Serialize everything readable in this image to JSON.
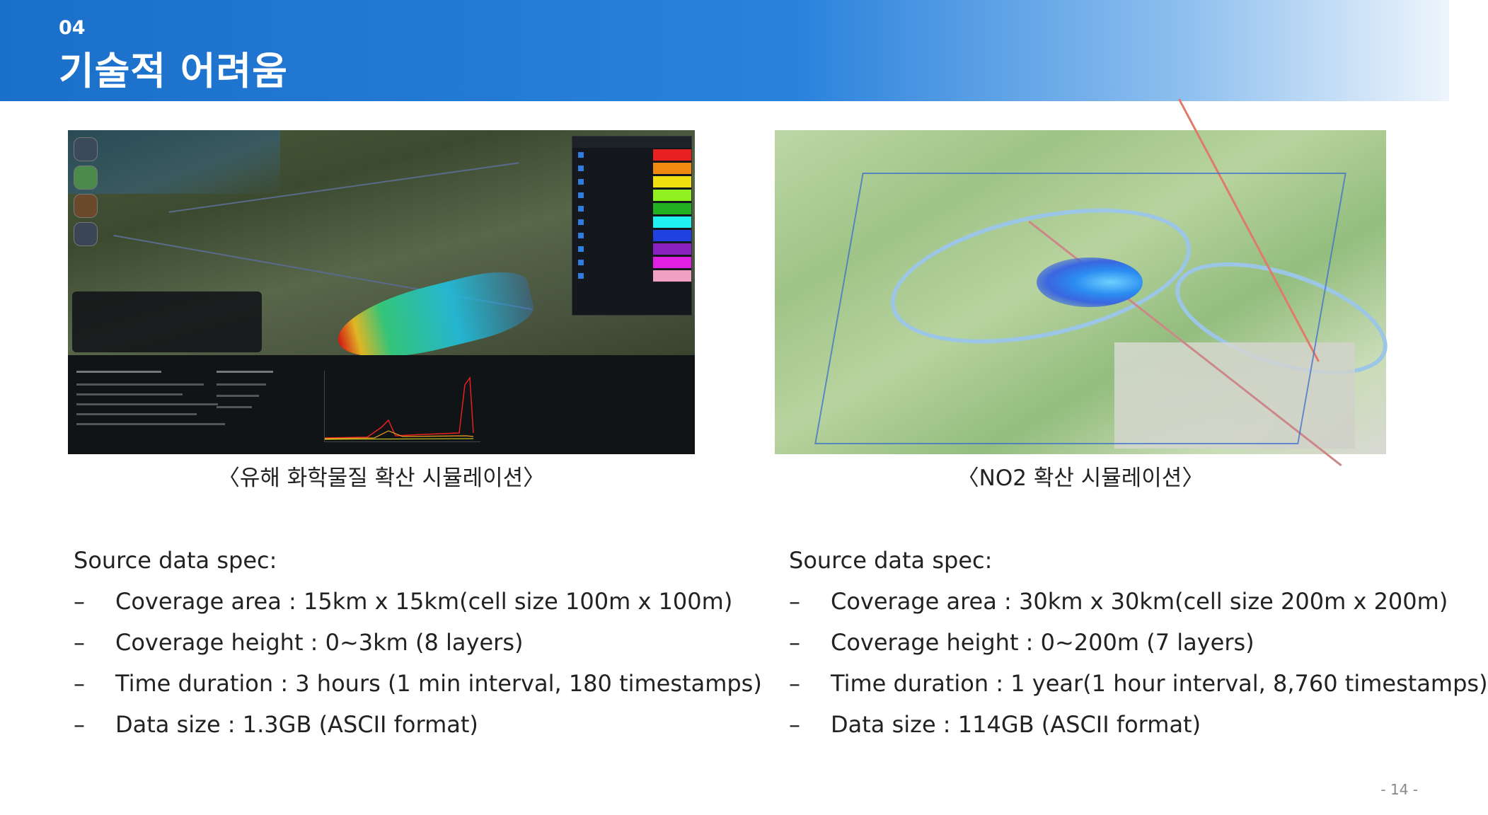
{
  "header": {
    "section_number": "04",
    "title": "기술적 어려움"
  },
  "figures": [
    {
      "caption": "〈유해 화학물질 확산 시뮬레이션〉",
      "icon": "chemical-simulation-screenshot"
    },
    {
      "caption": "〈NO2 확산 시뮬레이션〉",
      "icon": "no2-simulation-screenshot"
    }
  ],
  "specs": [
    {
      "heading": "Source data spec:",
      "items": [
        "Coverage area : 15km x 15km(cell size 100m x 100m)",
        "Coverage height : 0~3km (8 layers)",
        "Time duration : 3 hours (1 min interval, 180 timestamps)",
        "Data size : 1.3GB (ASCII format)"
      ]
    },
    {
      "heading": "Source data spec:",
      "items": [
        "Coverage area : 30km x 30km(cell size 200m x 200m)",
        "Coverage height : 0~200m (7 layers)",
        "Time duration : 1 year(1 hour interval, 8,760 timestamps)",
        "Data size : 114GB (ASCII format)"
      ]
    }
  ],
  "dash_symbol": "–",
  "page_number": "- 14 -",
  "colors": {
    "header_blue": "#1a6fc9",
    "text": "#222222"
  }
}
